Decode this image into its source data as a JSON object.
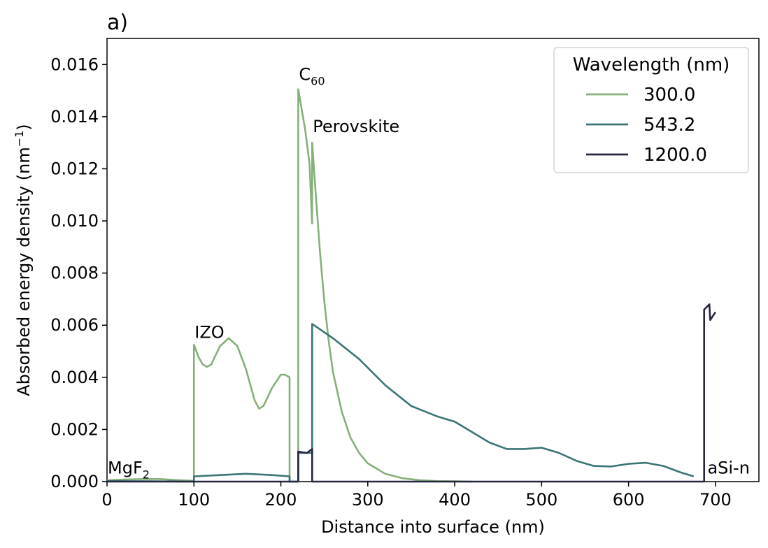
{
  "chart_data": {
    "type": "line",
    "panel_label": "a)",
    "xlabel": "Distance into surface (nm)",
    "ylabel": "Absorbed energy density (nm",
    "ylabel_sup": "−1",
    "ylabel_close": ")",
    "xlim": [
      0,
      750
    ],
    "ylim": [
      0,
      0.017
    ],
    "xticks": [
      0,
      100,
      200,
      300,
      400,
      500,
      600,
      700
    ],
    "yticks": [
      0.0,
      0.002,
      0.004,
      0.006,
      0.008,
      0.01,
      0.012,
      0.014,
      0.016
    ],
    "ytick_labels": [
      "0.000",
      "0.002",
      "0.004",
      "0.006",
      "0.008",
      "0.010",
      "0.012",
      "0.014",
      "0.016"
    ],
    "legend": {
      "title": "Wavelength (nm)",
      "position": "top-right"
    },
    "annotations": [
      {
        "text": "MgF",
        "sub": "2",
        "x": 0,
        "y": 0.0002
      },
      {
        "text": "IZO",
        "sub": "",
        "x": 100,
        "y": 0.0054
      },
      {
        "text": "C",
        "sub": "60",
        "x": 220,
        "y": 0.0153
      },
      {
        "text": "Perovskite",
        "sub": "",
        "x": 236,
        "y": 0.0133
      },
      {
        "text": "aSi-n",
        "sub": "",
        "x": 690,
        "y": 0.0002
      }
    ],
    "series": [
      {
        "name": "300.0",
        "color": "#86b07a",
        "x": [
          0,
          20,
          40,
          60,
          80,
          100,
          100,
          105,
          110,
          115,
          120,
          130,
          140,
          150,
          160,
          165,
          170,
          175,
          180,
          190,
          200,
          205,
          210,
          210,
          220,
          220,
          228,
          233,
          236,
          236,
          240,
          245,
          250,
          255,
          260,
          270,
          280,
          290,
          300,
          320,
          340,
          360,
          380,
          400,
          420
        ],
        "y": [
          5e-05,
          8e-05,
          0.0001,
          0.0001,
          6e-05,
          3e-05,
          0.00525,
          0.0048,
          0.0045,
          0.0044,
          0.0045,
          0.0052,
          0.0055,
          0.0052,
          0.0043,
          0.0037,
          0.0031,
          0.0028,
          0.0029,
          0.0036,
          0.0041,
          0.0041,
          0.004,
          0.0,
          0.0,
          0.01505,
          0.0135,
          0.0122,
          0.0099,
          0.013,
          0.0111,
          0.0088,
          0.0069,
          0.0054,
          0.0042,
          0.0027,
          0.0017,
          0.0011,
          0.0007,
          0.0003,
          0.00013,
          5e-05,
          2e-05,
          1e-05,
          0.0
        ]
      },
      {
        "name": "543.2",
        "color": "#3b7474",
        "x": [
          0,
          50,
          100,
          100,
          130,
          160,
          190,
          210,
          210,
          220,
          220,
          236,
          236,
          260,
          290,
          320,
          350,
          380,
          400,
          420,
          440,
          460,
          480,
          500,
          520,
          540,
          560,
          580,
          600,
          620,
          640,
          660,
          675
        ],
        "y": [
          2e-05,
          1e-05,
          0.0,
          0.0002,
          0.00025,
          0.0003,
          0.00025,
          0.0002,
          0.0,
          0.0,
          0.0011,
          0.0011,
          0.00605,
          0.0055,
          0.0047,
          0.0037,
          0.0029,
          0.0025,
          0.0023,
          0.0019,
          0.0015,
          0.00125,
          0.00125,
          0.0013,
          0.0011,
          0.0008,
          0.0006,
          0.00058,
          0.00068,
          0.00072,
          0.0006,
          0.00035,
          0.0002
        ]
      },
      {
        "name": "1200.0",
        "color": "#272640",
        "x": [
          0,
          100,
          200,
          218,
          220,
          220,
          230,
          236,
          236,
          300,
          400,
          500,
          600,
          686,
          687,
          687,
          693,
          694,
          700
        ],
        "y": [
          0.0,
          0.0,
          0.0,
          0.0,
          0.0,
          0.00115,
          0.0011,
          0.00125,
          0.0,
          0.0,
          0.0,
          0.0,
          0.0,
          0.0,
          0.0,
          0.0066,
          0.0068,
          0.0062,
          0.0065
        ]
      }
    ]
  }
}
